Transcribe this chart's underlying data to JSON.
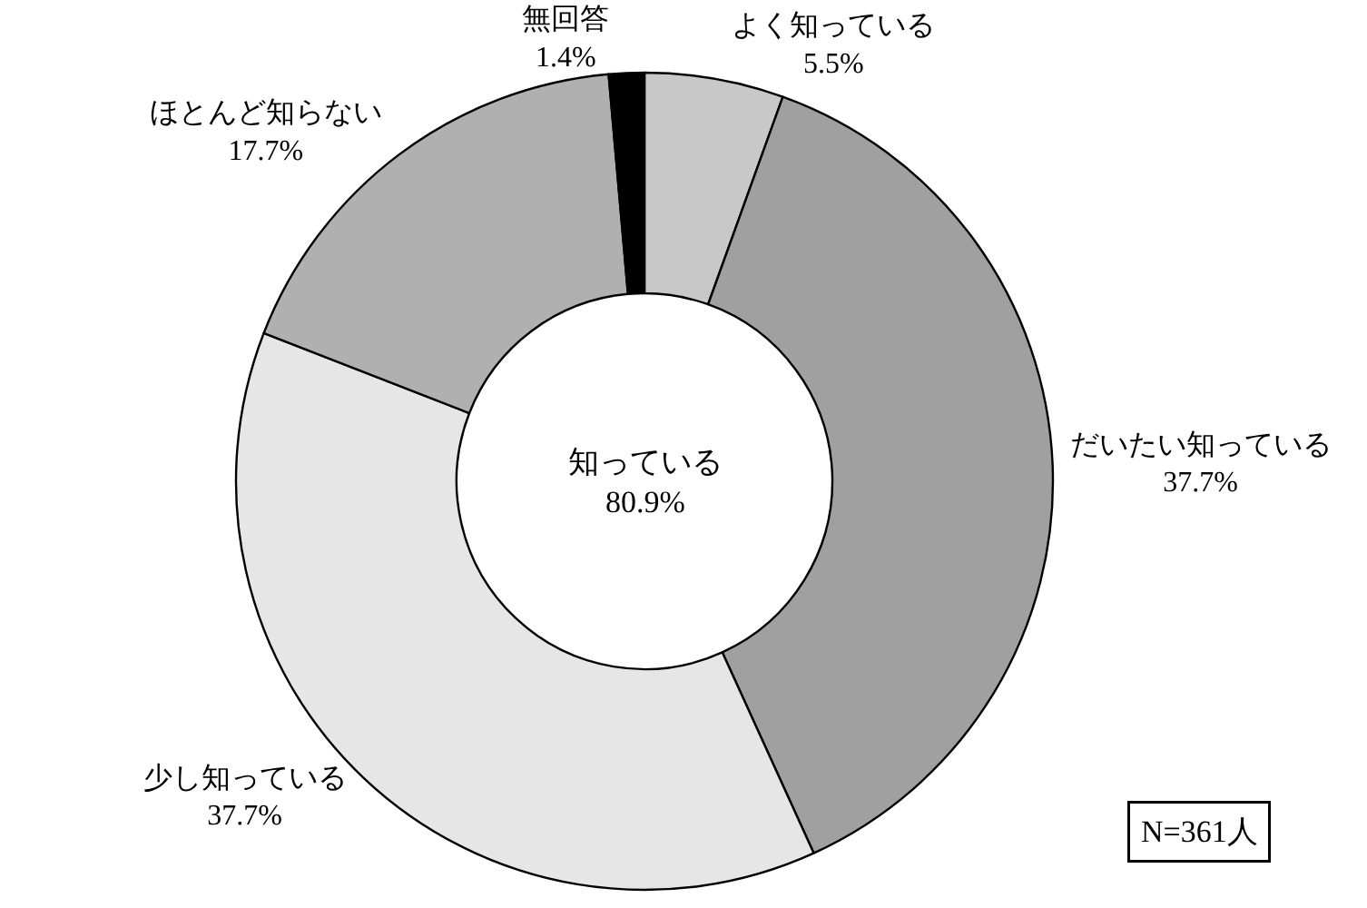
{
  "chart_data": {
    "type": "donut",
    "categories": [
      "よく知っている",
      "だいたい知っている",
      "少し知っている",
      "ほとんど知らない",
      "無回答"
    ],
    "values": [
      5.5,
      37.7,
      37.7,
      17.7,
      1.4
    ],
    "value_labels": [
      "5.5%",
      "37.7%",
      "37.7%",
      "17.7%",
      "1.4%"
    ],
    "colors": [
      "#c8c8c8",
      "#a0a0a0",
      "#e6e6e6",
      "#b0b0b0",
      "#000000"
    ],
    "annotations": [
      "知っている\n80.9%",
      "N=361人"
    ],
    "legend": false
  }
}
